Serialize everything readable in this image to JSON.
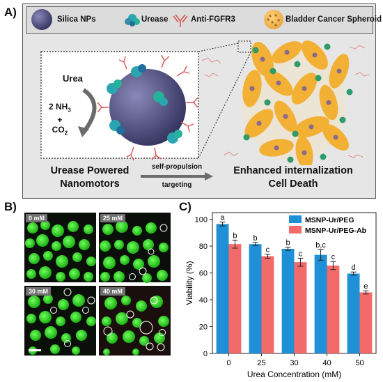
{
  "panel_a": {
    "label": "A)",
    "legend": [
      {
        "icon": "silica-nanoparticle-icon",
        "text": "Silica NPs"
      },
      {
        "icon": "urease-icon",
        "text": "Urease"
      },
      {
        "icon": "antibody-icon",
        "text": "Anti-FGFR3"
      },
      {
        "icon": "spheroid-icon",
        "text": "Bladder Cancer Spheroid"
      }
    ],
    "reaction": {
      "substrate": "Urea",
      "product_line1": "2 NH",
      "product_sub": "3",
      "plus": "+",
      "product_line2": "CO",
      "product_sub2": "2"
    },
    "bottom": {
      "left_line1": "Urease Powered",
      "left_line2": "Nanomotors",
      "arrow_top": "self-propulsion",
      "arrow_bottom": "targeting",
      "right_line1": "Enhanced internalization",
      "right_line2": "Cell Death"
    }
  },
  "panel_b": {
    "label": "B)",
    "images": [
      {
        "conc": "0 mM"
      },
      {
        "conc": "25 mM"
      },
      {
        "conc": "30 mM"
      },
      {
        "conc": "40 mM"
      }
    ]
  },
  "panel_c": {
    "label": "C)"
  },
  "chart_data": {
    "type": "bar",
    "categories": [
      "0",
      "25",
      "30",
      "40",
      "50"
    ],
    "series": [
      {
        "name": "MSNP-Ur/PEG",
        "color": "#1f8fd6",
        "values": [
          96.5,
          81.5,
          78,
          73.5,
          59.5
        ],
        "errors": [
          1.5,
          1.2,
          1.2,
          4,
          1.2
        ],
        "letters": [
          "a",
          "b",
          "b",
          "b,c",
          "d"
        ]
      },
      {
        "name": "MSNP-Ur/PEG-Ab",
        "color": "#f26a6a",
        "values": [
          81.5,
          72.5,
          68,
          65.5,
          45.5
        ],
        "errors": [
          3,
          1.5,
          3,
          3,
          1.2
        ],
        "letters": [
          "b",
          "c",
          "c",
          "c",
          "e"
        ]
      }
    ],
    "xlabel": "Urea Concentration (mM)",
    "ylabel": "Viability (%)",
    "ylim": [
      0,
      105
    ],
    "yticks": [
      "0",
      "20",
      "40",
      "60",
      "80",
      "100"
    ],
    "legend_position": "top-right",
    "grid": false
  }
}
